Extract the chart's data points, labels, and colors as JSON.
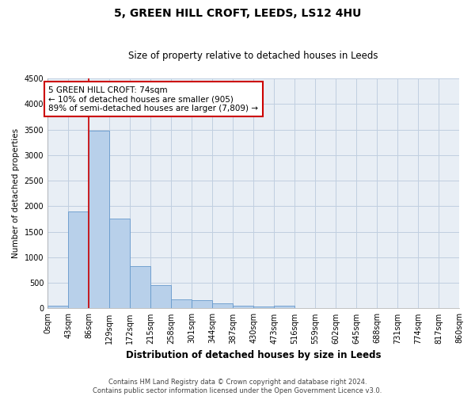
{
  "title": "5, GREEN HILL CROFT, LEEDS, LS12 4HU",
  "subtitle": "Size of property relative to detached houses in Leeds",
  "xlabel": "Distribution of detached houses by size in Leeds",
  "ylabel": "Number of detached properties",
  "bin_labels": [
    "0sqm",
    "43sqm",
    "86sqm",
    "129sqm",
    "172sqm",
    "215sqm",
    "258sqm",
    "301sqm",
    "344sqm",
    "387sqm",
    "430sqm",
    "473sqm",
    "516sqm",
    "559sqm",
    "602sqm",
    "645sqm",
    "688sqm",
    "731sqm",
    "774sqm",
    "817sqm",
    "860sqm"
  ],
  "bar_heights": [
    50,
    1900,
    3480,
    1750,
    830,
    450,
    175,
    160,
    100,
    55,
    40,
    50,
    0,
    0,
    0,
    0,
    0,
    0,
    0,
    0
  ],
  "bar_color": "#b8d0ea",
  "bar_edge_color": "#6699cc",
  "vline_x": 86,
  "vline_color": "#cc0000",
  "annotation_text": "5 GREEN HILL CROFT: 74sqm\n← 10% of detached houses are smaller (905)\n89% of semi-detached houses are larger (7,809) →",
  "annotation_box_color": "#ffffff",
  "annotation_box_edge": "#cc0000",
  "ylim": [
    0,
    4500
  ],
  "yticks": [
    0,
    500,
    1000,
    1500,
    2000,
    2500,
    3000,
    3500,
    4000,
    4500
  ],
  "footer_line1": "Contains HM Land Registry data © Crown copyright and database right 2024.",
  "footer_line2": "Contains public sector information licensed under the Open Government Licence v3.0.",
  "background_color": "#ffffff",
  "axes_bg_color": "#e8eef5",
  "grid_color": "#c0cfe0",
  "bin_width": 43,
  "title_fontsize": 10,
  "subtitle_fontsize": 8.5,
  "xlabel_fontsize": 8.5,
  "ylabel_fontsize": 7.5,
  "tick_fontsize": 7,
  "annotation_fontsize": 7.5,
  "footer_fontsize": 6
}
